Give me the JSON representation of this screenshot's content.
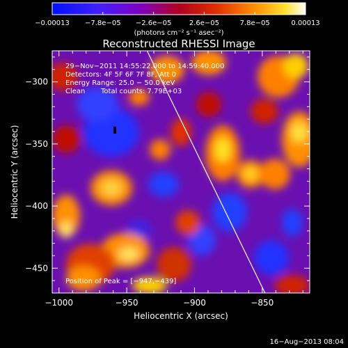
{
  "chart_data": {
    "type": "heatmap",
    "title": "Reconstructed RHESSI Image",
    "xlabel": "Heliocentric X (arcsec)",
    "ylabel": "Heliocentric Y (arcsec)",
    "xlim": [
      -1005,
      -815
    ],
    "ylim": [
      -470,
      -275
    ],
    "x_ticks": [
      -1000,
      -950,
      -900,
      -850
    ],
    "x_tick_labels": [
      "−1000",
      "−950",
      "−900",
      "−850"
    ],
    "y_ticks": [
      -450,
      -400,
      -350,
      -300
    ],
    "y_tick_labels": [
      "−450",
      "−400",
      "−350",
      "−300"
    ],
    "colorbar": {
      "range": [
        -0.00013,
        0.00013
      ],
      "tick_values": [
        -0.00013,
        -7.8e-05,
        -2.6e-05,
        2.6e-05,
        7.8e-05,
        0.00013
      ],
      "tick_labels": [
        "−0.00013",
        "−7.8e−05",
        "−2.6e−05",
        "2.6e−05",
        "7.8e−05",
        "0.00013"
      ],
      "units_label": "(photons cm⁻² s⁻¹ asec⁻²)"
    },
    "annotations": {
      "time_range": "29−Nov−2011 14:55:22.000 to 14:59:40.000",
      "detectors": "Detectors: 4F 5F 6F 7F 8F, Att 0",
      "energy_range": "Energy Range: 25.0 − 50.0 keV",
      "algorithm": "Clean",
      "total_counts": "Total counts: 7.79E+03",
      "peak": "Position of Peak = [−947,−439]"
    },
    "peak_position": [
      -947,
      -439
    ],
    "limb_line": [
      [
        -935,
        -275
      ],
      [
        -848,
        -470
      ]
    ],
    "grid": false,
    "colormap": [
      "#0000ff",
      "#8000c0",
      "#c00000",
      "#ff8000",
      "#ffff00",
      "#ffffff"
    ]
  },
  "footer_date": "16−Aug−2013 08:04"
}
